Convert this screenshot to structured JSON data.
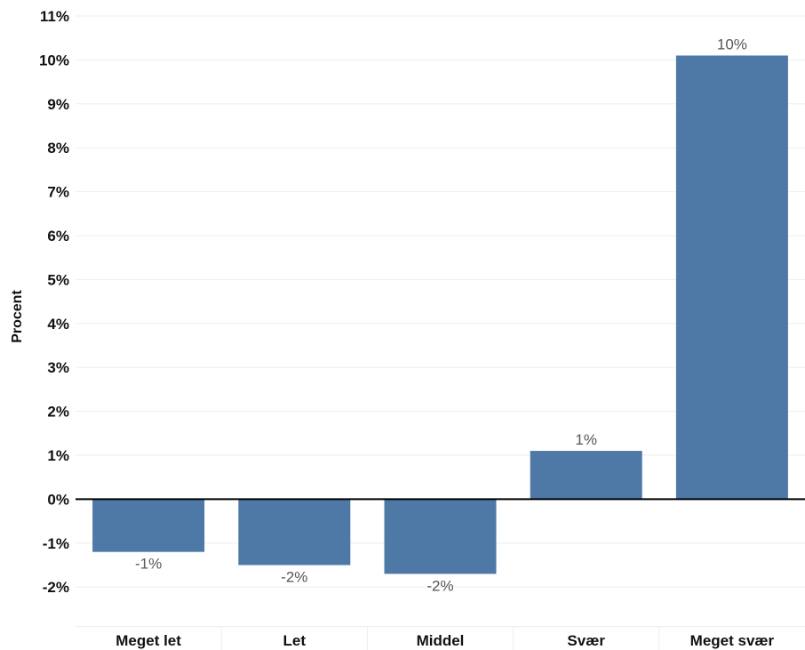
{
  "chart_data": {
    "type": "bar",
    "categories": [
      "Meget let",
      "Let",
      "Middel",
      "Svær",
      "Meget svær"
    ],
    "values": [
      -1.2,
      -1.5,
      -1.7,
      1.1,
      10.1
    ],
    "data_labels": [
      "-1%",
      "-2%",
      "-2%",
      "1%",
      "10%"
    ],
    "title": "",
    "xlabel": "",
    "ylabel": "Procent",
    "ylim": [
      -2.9,
      11
    ],
    "yticks": [
      11,
      10,
      9,
      8,
      7,
      6,
      5,
      4,
      3,
      2,
      1,
      0,
      -1,
      -2
    ],
    "ytick_labels": [
      "11%",
      "10%",
      "9%",
      "8%",
      "7%",
      "6%",
      "5%",
      "4%",
      "3%",
      "2%",
      "1%",
      "0%",
      "-1%",
      "-2%"
    ],
    "grid": true,
    "legend": "none",
    "colors": {
      "bar": "#4e79a7",
      "grid": "#ededed",
      "zero_line": "#000000",
      "text": "#111111",
      "data_label": "#555555"
    }
  }
}
